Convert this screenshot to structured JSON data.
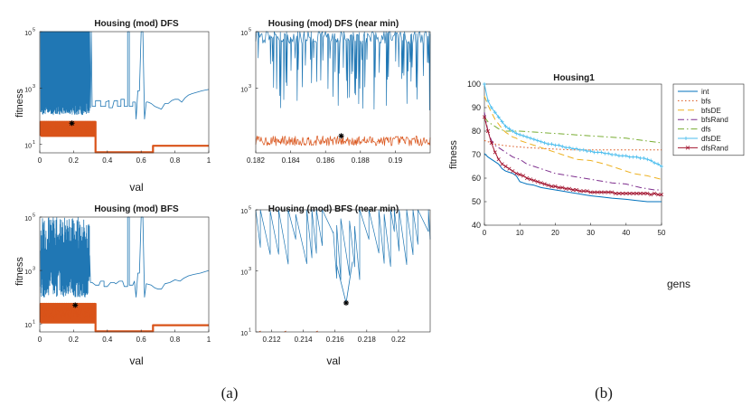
{
  "caption_a": "(a)",
  "caption_b": "(b)",
  "colors": {
    "blue": "#2077b4",
    "orange": "#d95319",
    "black": "#000000"
  },
  "chart_data": [
    {
      "type": "line",
      "title": "Housing (mod) DFS",
      "xlabel": "val",
      "ylabel": "fitness",
      "yscale": "log",
      "xlim": [
        0,
        1
      ],
      "ylim_exp": [
        0.7,
        5
      ],
      "xticks": [
        0,
        0.2,
        0.4,
        0.6,
        0.8,
        1
      ],
      "xtick_labels": [
        "0",
        "0.2",
        "0.4",
        "0.6",
        "0.8",
        "1"
      ],
      "ytick_exps": [
        1,
        3,
        5
      ],
      "ytick_labels": [
        "10",
        "10",
        "10"
      ],
      "ytick_sups": [
        "1",
        "3",
        "5"
      ],
      "series": [
        {
          "name": "fitness",
          "color": "#2077b4",
          "kind": "dfsfull"
        },
        {
          "name": "lower",
          "color": "#d95319",
          "kind": "lowfull",
          "range": [
            1.3,
            1.8
          ]
        }
      ],
      "marker": {
        "x": 0.19,
        "y_exp": 1.75
      }
    },
    {
      "type": "line",
      "title": "Housing (mod) DFS (near min)",
      "xlabel": "",
      "ylabel": "",
      "yscale": "log",
      "xlim": [
        0.182,
        0.192
      ],
      "ylim_exp": [
        0.7,
        5
      ],
      "xticks": [
        0.182,
        0.184,
        0.186,
        0.188,
        0.19
      ],
      "xtick_labels": [
        "0.182",
        "0.184",
        "0.186",
        "0.188",
        "0.19"
      ],
      "ytick_exps": [
        3,
        5
      ],
      "ytick_labels": [
        "10",
        "10"
      ],
      "ytick_sups": [
        "3",
        "5"
      ],
      "series": [
        {
          "name": "fitness",
          "color": "#2077b4",
          "kind": "spiky",
          "seed": 7
        },
        {
          "name": "lower",
          "color": "#d95319",
          "kind": "band",
          "range": [
            0.95,
            1.3
          ]
        }
      ],
      "marker": {
        "x": 0.1869,
        "y_exp": 1.3
      }
    },
    {
      "type": "line",
      "title": "Housing (mod) BFS",
      "xlabel": "val",
      "ylabel": "fitness",
      "yscale": "log",
      "xlim": [
        0,
        1
      ],
      "ylim_exp": [
        0.7,
        5
      ],
      "xticks": [
        0,
        0.2,
        0.4,
        0.6,
        0.8,
        1
      ],
      "xtick_labels": [
        "0",
        "0.2",
        "0.4",
        "0.6",
        "0.8",
        "1"
      ],
      "ytick_exps": [
        1,
        3,
        5
      ],
      "ytick_labels": [
        "10",
        "10",
        "10"
      ],
      "ytick_sups": [
        "1",
        "3",
        "5"
      ],
      "series": [
        {
          "name": "fitness",
          "color": "#2077b4",
          "kind": "bfsfull"
        },
        {
          "name": "lower",
          "color": "#d95319",
          "kind": "lowfull",
          "range": [
            1.05,
            1.75
          ]
        }
      ],
      "marker": {
        "x": 0.21,
        "y_exp": 1.7
      }
    },
    {
      "type": "line",
      "title": "Housing (mod) BFS (near min)",
      "xlabel": "val",
      "ylabel": "",
      "yscale": "log",
      "xlim": [
        0.211,
        0.222
      ],
      "ylim_exp": [
        1,
        5
      ],
      "xticks": [
        0.212,
        0.214,
        0.216,
        0.218,
        0.22
      ],
      "xtick_labels": [
        "0.212",
        "0.214",
        "0.216",
        "0.218",
        "0.22"
      ],
      "ytick_exps": [
        1,
        3,
        5
      ],
      "ytick_labels": [
        "10",
        "10",
        "10"
      ],
      "ytick_sups": [
        "1",
        "3",
        "5"
      ],
      "series": [
        {
          "name": "fitness",
          "color": "#2077b4",
          "kind": "sawtooth",
          "seed": 3
        },
        {
          "name": "lower",
          "color": "#d95319",
          "kind": "dots"
        }
      ],
      "marker": {
        "x": 0.2167,
        "y_exp": 1.95
      }
    },
    {
      "type": "line",
      "title": "Housing1",
      "xlabel": "gens",
      "ylabel": "fitness",
      "xlim": [
        0,
        50
      ],
      "ylim": [
        40,
        100
      ],
      "xticks": [
        0,
        10,
        20,
        30,
        40,
        50
      ],
      "xtick_labels": [
        "0",
        "10",
        "20",
        "30",
        "40",
        "50"
      ],
      "yticks": [
        40,
        50,
        60,
        70,
        80,
        90,
        100
      ],
      "ytick_labels": [
        "40",
        "50",
        "60",
        "70",
        "80",
        "90",
        "100"
      ],
      "series": [
        {
          "name": "int",
          "color": "#0072bd",
          "dash": "",
          "marker": "",
          "pts": [
            [
              0,
              70.5
            ],
            [
              1,
              69
            ],
            [
              2,
              68
            ],
            [
              3,
              67
            ],
            [
              4,
              66
            ],
            [
              5,
              64
            ],
            [
              6,
              63
            ],
            [
              7,
              62.5
            ],
            [
              8,
              62
            ],
            [
              9,
              61
            ],
            [
              10,
              58.5
            ],
            [
              11,
              58
            ],
            [
              12,
              57.5
            ],
            [
              14,
              57
            ],
            [
              16,
              56
            ],
            [
              18,
              55.5
            ],
            [
              20,
              55
            ],
            [
              22,
              54.5
            ],
            [
              24,
              54
            ],
            [
              26,
              53.5
            ],
            [
              28,
              53
            ],
            [
              30,
              52.5
            ],
            [
              33,
              52
            ],
            [
              36,
              51.5
            ],
            [
              40,
              51
            ],
            [
              43,
              50.5
            ],
            [
              46,
              50
            ],
            [
              50,
              50
            ]
          ]
        },
        {
          "name": "bfs",
          "color": "#d95319",
          "dash": "1.5,2.5",
          "marker": "",
          "pts": [
            [
              0,
              76
            ],
            [
              1,
              75.5
            ],
            [
              2,
              75
            ],
            [
              3,
              74.5
            ],
            [
              5,
              74
            ],
            [
              8,
              73.5
            ],
            [
              12,
              73
            ],
            [
              18,
              72.5
            ],
            [
              25,
              72
            ],
            [
              50,
              72
            ]
          ]
        },
        {
          "name": "bfsDE",
          "color": "#edb120",
          "dash": "7,4",
          "marker": "",
          "pts": [
            [
              0,
              95
            ],
            [
              1,
              91
            ],
            [
              2,
              88
            ],
            [
              3,
              85
            ],
            [
              4,
              83
            ],
            [
              5,
              81
            ],
            [
              6,
              79.5
            ],
            [
              7,
              78.5
            ],
            [
              8,
              77.5
            ],
            [
              9,
              77
            ],
            [
              10,
              76
            ],
            [
              12,
              75
            ],
            [
              14,
              74
            ],
            [
              16,
              73
            ],
            [
              18,
              72
            ],
            [
              20,
              71
            ],
            [
              22,
              70
            ],
            [
              24,
              69
            ],
            [
              26,
              68
            ],
            [
              30,
              67.5
            ],
            [
              34,
              66
            ],
            [
              38,
              64
            ],
            [
              42,
              62
            ],
            [
              46,
              61
            ],
            [
              50,
              59.5
            ]
          ]
        },
        {
          "name": "bfsRand",
          "color": "#7e2f8e",
          "dash": "7,3,1.5,3",
          "marker": "",
          "pts": [
            [
              0,
              88
            ],
            [
              1,
              80
            ],
            [
              2,
              76
            ],
            [
              3,
              74
            ],
            [
              4,
              73
            ],
            [
              5,
              72
            ],
            [
              6,
              71
            ],
            [
              7,
              70
            ],
            [
              8,
              69
            ],
            [
              9,
              68.5
            ],
            [
              10,
              68
            ],
            [
              12,
              66
            ],
            [
              14,
              65
            ],
            [
              16,
              64
            ],
            [
              18,
              63
            ],
            [
              20,
              62
            ],
            [
              24,
              61
            ],
            [
              28,
              60
            ],
            [
              32,
              59
            ],
            [
              36,
              58
            ],
            [
              40,
              57.5
            ],
            [
              44,
              56
            ],
            [
              48,
              55
            ],
            [
              50,
              55
            ]
          ]
        },
        {
          "name": "dfs",
          "color": "#77ac30",
          "dash": "7,3,1.5,3",
          "marker": "",
          "pts": [
            [
              0,
              86
            ],
            [
              1,
              84
            ],
            [
              2,
              83
            ],
            [
              3,
              82
            ],
            [
              4,
              81
            ],
            [
              5,
              80.5
            ],
            [
              6,
              80
            ],
            [
              10,
              80
            ],
            [
              15,
              79.5
            ],
            [
              20,
              79
            ],
            [
              25,
              78.5
            ],
            [
              30,
              78
            ],
            [
              35,
              77.5
            ],
            [
              40,
              77
            ],
            [
              45,
              76
            ],
            [
              50,
              75
            ]
          ]
        },
        {
          "name": "dfsDE",
          "color": "#4dbeee",
          "dash": "",
          "marker": "plus",
          "pts": [
            [
              0,
              100
            ],
            [
              1,
              93
            ],
            [
              2,
              90
            ],
            [
              3,
              88
            ],
            [
              4,
              86
            ],
            [
              5,
              84
            ],
            [
              6,
              82
            ],
            [
              7,
              81
            ],
            [
              8,
              80
            ],
            [
              9,
              79
            ],
            [
              10,
              78.5
            ],
            [
              11,
              78
            ],
            [
              12,
              77.5
            ],
            [
              13,
              77
            ],
            [
              14,
              76.5
            ],
            [
              15,
              76
            ],
            [
              16,
              75.5
            ],
            [
              17,
              75
            ],
            [
              18,
              74.5
            ],
            [
              19,
              74.5
            ],
            [
              20,
              74
            ],
            [
              21,
              74
            ],
            [
              22,
              73.5
            ],
            [
              23,
              73
            ],
            [
              24,
              73
            ],
            [
              25,
              72.5
            ],
            [
              26,
              72.5
            ],
            [
              27,
              72
            ],
            [
              28,
              72
            ],
            [
              29,
              71.5
            ],
            [
              30,
              71.5
            ],
            [
              31,
              71
            ],
            [
              32,
              71
            ],
            [
              33,
              71
            ],
            [
              34,
              70.5
            ],
            [
              35,
              70.5
            ],
            [
              36,
              70
            ],
            [
              37,
              70
            ],
            [
              38,
              69.5
            ],
            [
              39,
              69.5
            ],
            [
              40,
              69.5
            ],
            [
              41,
              69
            ],
            [
              42,
              69
            ],
            [
              43,
              69
            ],
            [
              44,
              68.5
            ],
            [
              45,
              68.5
            ],
            [
              46,
              68
            ],
            [
              47,
              67.5
            ],
            [
              48,
              66.5
            ],
            [
              49,
              66
            ],
            [
              50,
              65
            ]
          ]
        },
        {
          "name": "dfsRand",
          "color": "#a2142f",
          "dash": "",
          "marker": "x",
          "pts": [
            [
              0,
              86
            ],
            [
              1,
              80
            ],
            [
              2,
              75
            ],
            [
              3,
              71
            ],
            [
              4,
              68
            ],
            [
              5,
              66
            ],
            [
              6,
              65
            ],
            [
              7,
              64
            ],
            [
              8,
              63
            ],
            [
              9,
              62
            ],
            [
              10,
              61.5
            ],
            [
              11,
              61
            ],
            [
              12,
              60
            ],
            [
              13,
              59.5
            ],
            [
              14,
              59
            ],
            [
              15,
              58.5
            ],
            [
              16,
              58
            ],
            [
              17,
              57.5
            ],
            [
              18,
              57
            ],
            [
              19,
              56.5
            ],
            [
              20,
              56.5
            ],
            [
              21,
              56
            ],
            [
              22,
              56
            ],
            [
              23,
              55.5
            ],
            [
              24,
              55.5
            ],
            [
              25,
              55
            ],
            [
              26,
              55
            ],
            [
              27,
              54.5
            ],
            [
              28,
              54.5
            ],
            [
              29,
              54.5
            ],
            [
              30,
              54
            ],
            [
              31,
              54
            ],
            [
              32,
              54
            ],
            [
              33,
              54
            ],
            [
              34,
              54
            ],
            [
              35,
              54
            ],
            [
              36,
              54
            ],
            [
              37,
              53.5
            ],
            [
              38,
              53.5
            ],
            [
              39,
              53.5
            ],
            [
              40,
              53.5
            ],
            [
              41,
              53.5
            ],
            [
              42,
              53.5
            ],
            [
              43,
              53.5
            ],
            [
              44,
              53.5
            ],
            [
              45,
              53.5
            ],
            [
              46,
              53.5
            ],
            [
              47,
              53
            ],
            [
              48,
              53.5
            ],
            [
              49,
              53
            ],
            [
              50,
              53
            ]
          ]
        }
      ],
      "legend_position": "top-right"
    }
  ]
}
